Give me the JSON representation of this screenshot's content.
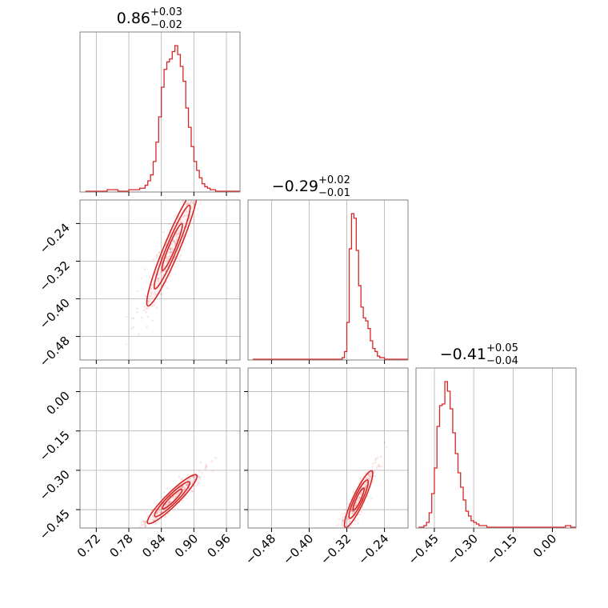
{
  "chart_data": {
    "type": "corner",
    "color": "#d62728",
    "grid": true,
    "parameters": [
      {
        "range": [
          0.69,
          0.985
        ],
        "ticks": [
          0.72,
          0.78,
          0.84,
          0.9,
          0.96
        ],
        "tick_labels": [
          "0.72",
          "0.78",
          "0.84",
          "0.90",
          "0.96"
        ]
      },
      {
        "range": [
          -0.53,
          -0.19
        ],
        "ticks": [
          -0.48,
          -0.4,
          -0.32,
          -0.24
        ],
        "tick_labels": [
          "−0.48",
          "−0.40",
          "−0.32",
          "−0.24"
        ]
      },
      {
        "range": [
          -0.52,
          0.09
        ],
        "ticks": [
          -0.45,
          -0.3,
          -0.15,
          0.0
        ],
        "tick_labels": [
          "−0.45",
          "−0.30",
          "−0.15",
          "0.00"
        ]
      }
    ],
    "titles": [
      {
        "value": "0.86",
        "plus": "+0.03",
        "minus": "−0.02"
      },
      {
        "value": "−0.29",
        "plus": "+0.02",
        "minus": "−0.01"
      },
      {
        "value": "−0.41",
        "plus": "+0.05",
        "minus": "−0.04"
      }
    ],
    "histograms": [
      {
        "param": 0,
        "x": [
          0.7,
          0.72,
          0.74,
          0.76,
          0.78,
          0.8,
          0.81,
          0.815,
          0.82,
          0.825,
          0.83,
          0.835,
          0.84,
          0.845,
          0.85,
          0.855,
          0.86,
          0.865,
          0.87,
          0.875,
          0.88,
          0.885,
          0.89,
          0.895,
          0.9,
          0.905,
          0.91,
          0.915,
          0.92,
          0.925,
          0.93,
          0.94,
          0.96,
          0.98
        ],
        "density": [
          0.0,
          0.0,
          0.01,
          0.0,
          0.01,
          0.02,
          0.04,
          0.07,
          0.11,
          0.2,
          0.33,
          0.5,
          0.7,
          0.82,
          0.87,
          0.89,
          0.94,
          0.98,
          0.92,
          0.84,
          0.74,
          0.56,
          0.43,
          0.3,
          0.2,
          0.14,
          0.09,
          0.05,
          0.03,
          0.02,
          0.01,
          0.0,
          0.0,
          0.0
        ]
      },
      {
        "param": 1,
        "x": [
          -0.52,
          -0.48,
          -0.44,
          -0.4,
          -0.36,
          -0.33,
          -0.325,
          -0.32,
          -0.315,
          -0.31,
          -0.305,
          -0.3,
          -0.295,
          -0.29,
          -0.285,
          -0.28,
          -0.275,
          -0.27,
          -0.265,
          -0.26,
          -0.255,
          -0.25,
          -0.24,
          -0.22,
          -0.2
        ],
        "density": [
          0.0,
          0.0,
          0.0,
          0.0,
          0.0,
          0.01,
          0.05,
          0.24,
          0.72,
          0.95,
          0.92,
          0.71,
          0.48,
          0.34,
          0.27,
          0.25,
          0.2,
          0.12,
          0.07,
          0.05,
          0.02,
          0.01,
          0.0,
          0.0,
          0.0
        ]
      },
      {
        "param": 2,
        "x": [
          -0.51,
          -0.49,
          -0.48,
          -0.47,
          -0.46,
          -0.45,
          -0.44,
          -0.43,
          -0.42,
          -0.41,
          -0.4,
          -0.39,
          -0.38,
          -0.37,
          -0.36,
          -0.35,
          -0.34,
          -0.33,
          -0.32,
          -0.31,
          -0.3,
          -0.29,
          -0.28,
          -0.27,
          -0.25,
          -0.2,
          -0.1,
          0.0,
          0.05,
          0.07
        ],
        "density": [
          0.0,
          0.01,
          0.03,
          0.09,
          0.21,
          0.37,
          0.63,
          0.76,
          0.77,
          0.91,
          0.85,
          0.74,
          0.59,
          0.46,
          0.34,
          0.25,
          0.17,
          0.1,
          0.07,
          0.04,
          0.03,
          0.02,
          0.01,
          0.01,
          0.0,
          0.0,
          0.0,
          0.0,
          0.01,
          0.0
        ]
      }
    ],
    "scatter_panels": [
      {
        "xparam": 0,
        "yparam": 1,
        "center": [
          0.86,
          -0.29
        ],
        "dx_per_dy": 0.36,
        "contour_half_widths": [
          [
            0.045,
            0.012
          ],
          [
            0.032,
            0.008
          ],
          [
            0.018,
            0.005
          ]
        ],
        "scatter_extent_x": [
          0.81,
          0.97
        ]
      },
      {
        "xparam": 0,
        "yparam": 2,
        "center": [
          0.86,
          -0.41
        ],
        "dx_per_dy": 0.49,
        "contour_half_widths": [
          [
            0.045,
            0.01
          ],
          [
            0.032,
            0.007
          ],
          [
            0.018,
            0.004
          ]
        ],
        "scatter_extent_x": [
          0.82,
          0.96
        ]
      },
      {
        "xparam": 1,
        "yparam": 2,
        "center": [
          -0.295,
          -0.41
        ],
        "dx_per_dy": 0.26,
        "contour_half_widths": [
          [
            0.028,
            0.01
          ],
          [
            0.019,
            0.007
          ],
          [
            0.011,
            0.004
          ]
        ],
        "scatter_extent_x": [
          -0.32,
          -0.24
        ]
      }
    ]
  }
}
